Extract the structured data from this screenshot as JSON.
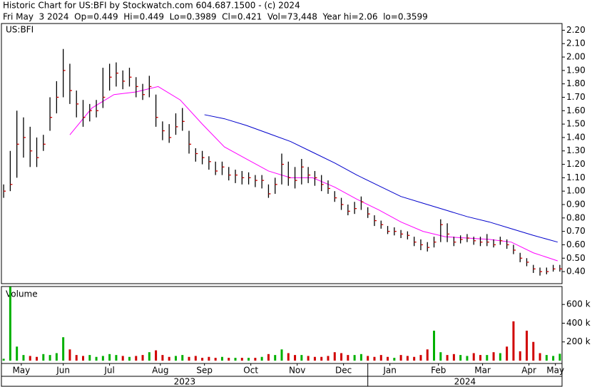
{
  "header": {
    "line1": "Historic Chart for US:BFI by Stockwatch.com 604.687.1500 - (c) 2024",
    "line2": "Fri May  3 2024  Op=0.449  Hi=0.449  Lo=0.3989  Cl=0.421  Vol=73,448  Year hi=2.06  lo=0.3599"
  },
  "chart_data": {
    "type": "ohlc",
    "title": "US:BFI",
    "x": [
      0,
      3,
      6,
      9,
      12,
      15,
      18,
      21,
      24,
      27,
      30,
      33,
      36,
      39,
      42,
      45,
      48,
      51,
      54,
      57,
      60,
      63,
      66,
      69,
      72,
      75,
      78,
      81,
      84,
      87,
      90,
      93,
      96,
      99,
      102,
      105,
      108,
      111,
      114,
      117,
      120,
      123,
      126,
      129,
      132,
      135,
      138,
      141,
      144,
      147,
      150,
      153,
      156,
      159,
      162,
      165,
      168,
      171,
      174,
      177,
      180,
      183,
      186,
      189,
      192,
      195,
      198,
      201,
      204,
      207,
      210,
      213,
      216,
      219,
      222,
      225,
      228,
      231,
      234,
      237,
      240,
      243,
      246,
      249,
      252
    ],
    "high": [
      1.05,
      1.3,
      1.6,
      1.55,
      1.48,
      1.4,
      1.42,
      1.7,
      1.82,
      2.06,
      1.95,
      1.75,
      1.68,
      1.65,
      1.68,
      1.92,
      1.95,
      1.96,
      1.9,
      1.92,
      1.85,
      1.8,
      1.86,
      1.72,
      1.52,
      1.5,
      1.58,
      1.62,
      1.45,
      1.32,
      1.3,
      1.26,
      1.22,
      1.22,
      1.18,
      1.16,
      1.15,
      1.14,
      1.12,
      1.12,
      1.05,
      1.1,
      1.28,
      1.22,
      1.18,
      1.24,
      1.18,
      1.15,
      1.12,
      1.08,
      1.0,
      0.95,
      0.9,
      0.92,
      0.96,
      0.88,
      0.82,
      0.78,
      0.74,
      0.73,
      0.71,
      0.7,
      0.66,
      0.64,
      0.62,
      0.66,
      0.79,
      0.76,
      0.66,
      0.67,
      0.68,
      0.66,
      0.66,
      0.68,
      0.64,
      0.66,
      0.64,
      0.6,
      0.54,
      0.5,
      0.45,
      0.43,
      0.43,
      0.45,
      0.45
    ],
    "low": [
      0.95,
      1.0,
      1.1,
      1.25,
      1.18,
      1.18,
      1.3,
      1.45,
      1.58,
      1.7,
      1.65,
      1.55,
      1.48,
      1.52,
      1.55,
      1.62,
      1.75,
      1.78,
      1.76,
      1.78,
      1.7,
      1.68,
      1.7,
      1.48,
      1.38,
      1.36,
      1.42,
      1.45,
      1.28,
      1.22,
      1.2,
      1.16,
      1.12,
      1.12,
      1.08,
      1.06,
      1.05,
      1.05,
      1.03,
      1.02,
      0.95,
      0.98,
      1.05,
      1.04,
      1.02,
      1.05,
      1.06,
      1.04,
      1.0,
      0.98,
      0.92,
      0.86,
      0.82,
      0.83,
      0.86,
      0.8,
      0.74,
      0.72,
      0.68,
      0.67,
      0.65,
      0.64,
      0.59,
      0.56,
      0.55,
      0.58,
      0.62,
      0.62,
      0.59,
      0.61,
      0.62,
      0.6,
      0.59,
      0.59,
      0.58,
      0.6,
      0.57,
      0.53,
      0.47,
      0.44,
      0.39,
      0.37,
      0.38,
      0.4,
      0.4
    ],
    "close": [
      1.0,
      1.05,
      1.35,
      1.4,
      1.3,
      1.25,
      1.35,
      1.55,
      1.7,
      1.9,
      1.75,
      1.65,
      1.55,
      1.6,
      1.6,
      1.7,
      1.85,
      1.88,
      1.82,
      1.85,
      1.78,
      1.72,
      1.78,
      1.55,
      1.45,
      1.4,
      1.48,
      1.52,
      1.35,
      1.28,
      1.25,
      1.22,
      1.15,
      1.18,
      1.12,
      1.12,
      1.1,
      1.1,
      1.08,
      1.08,
      0.98,
      1.05,
      1.2,
      1.1,
      1.08,
      1.18,
      1.12,
      1.1,
      1.05,
      1.02,
      0.95,
      0.9,
      0.85,
      0.87,
      0.92,
      0.83,
      0.78,
      0.75,
      0.7,
      0.7,
      0.68,
      0.67,
      0.62,
      0.6,
      0.58,
      0.62,
      0.75,
      0.68,
      0.62,
      0.64,
      0.65,
      0.63,
      0.62,
      0.62,
      0.6,
      0.63,
      0.6,
      0.56,
      0.5,
      0.47,
      0.42,
      0.4,
      0.4,
      0.42,
      0.42
    ],
    "color": "#000000",
    "close_color": "#cc0000",
    "lines": [
      {
        "color": "#ff00ff",
        "x": [
          30,
          40,
          50,
          60,
          70,
          80,
          90,
          100,
          110,
          120,
          130,
          140,
          150,
          160,
          170,
          180,
          190,
          200,
          210,
          220,
          230,
          240,
          251
        ],
        "values": [
          1.42,
          1.62,
          1.72,
          1.74,
          1.78,
          1.68,
          1.5,
          1.33,
          1.24,
          1.15,
          1.1,
          1.1,
          1.03,
          0.94,
          0.86,
          0.77,
          0.7,
          0.66,
          0.65,
          0.64,
          0.62,
          0.54,
          0.48
        ]
      },
      {
        "color": "#0000cc",
        "x": [
          91,
          100,
          110,
          120,
          130,
          140,
          150,
          160,
          170,
          180,
          190,
          200,
          210,
          220,
          230,
          240,
          251
        ],
        "values": [
          1.57,
          1.54,
          1.49,
          1.43,
          1.37,
          1.29,
          1.21,
          1.12,
          1.04,
          0.96,
          0.91,
          0.86,
          0.81,
          0.77,
          0.72,
          0.67,
          0.62
        ]
      }
    ],
    "xlim": [
      -1,
      253
    ],
    "ylim": [
      0.31,
      2.25
    ],
    "yticks": [
      {
        "value": 0.4,
        "label": "0.40"
      },
      {
        "value": 0.5,
        "label": "0.50"
      },
      {
        "value": 0.6,
        "label": "0.60"
      },
      {
        "value": 0.7,
        "label": "0.70"
      },
      {
        "value": 0.8,
        "label": "0.80"
      },
      {
        "value": 0.9,
        "label": "0.90"
      },
      {
        "value": 1.0,
        "label": "1.00"
      },
      {
        "value": 1.1,
        "label": "1.10"
      },
      {
        "value": 1.2,
        "label": "1.20"
      },
      {
        "value": 1.3,
        "label": "1.30"
      },
      {
        "value": 1.4,
        "label": "1.40"
      },
      {
        "value": 1.5,
        "label": "1.50"
      },
      {
        "value": 1.6,
        "label": "1.60"
      },
      {
        "value": 1.7,
        "label": "1.70"
      },
      {
        "value": 1.8,
        "label": "1.80"
      },
      {
        "value": 1.9,
        "label": "1.90"
      },
      {
        "value": 2.0,
        "label": "2.00"
      },
      {
        "value": 2.1,
        "label": "2.10"
      },
      {
        "value": 2.2,
        "label": "2.20"
      }
    ],
    "volume_title": "Volume",
    "volume": [
      20000,
      790000,
      150000,
      60000,
      50000,
      40000,
      70000,
      60000,
      80000,
      250000,
      120000,
      60000,
      50000,
      60000,
      40000,
      50000,
      70000,
      60000,
      50000,
      40000,
      50000,
      60000,
      90000,
      110000,
      60000,
      40000,
      50000,
      60000,
      40000,
      50000,
      30000,
      40000,
      30000,
      40000,
      30000,
      30000,
      30000,
      30000,
      30000,
      40000,
      70000,
      60000,
      120000,
      80000,
      60000,
      60000,
      50000,
      40000,
      40000,
      50000,
      90000,
      80000,
      60000,
      60000,
      70000,
      50000,
      40000,
      60000,
      40000,
      30000,
      60000,
      50000,
      40000,
      60000,
      120000,
      320000,
      90000,
      60000,
      70000,
      60000,
      50000,
      80000,
      60000,
      60000,
      90000,
      80000,
      150000,
      420000,
      100000,
      320000,
      200000,
      80000,
      60000,
      50000,
      73448
    ],
    "up_color": "#00b000",
    "down_color": "#d00000",
    "volume_ylim": [
      0,
      792000
    ],
    "volume_yticks": [
      {
        "value": 200000,
        "label": "200 k"
      },
      {
        "value": 400000,
        "label": "400 k"
      },
      {
        "value": 600000,
        "label": "600 k"
      }
    ],
    "xticks": [
      {
        "value": 8,
        "label": "May"
      },
      {
        "value": 27,
        "label": "Jun"
      },
      {
        "value": 48,
        "label": "Jul"
      },
      {
        "value": 71,
        "label": "Aug"
      },
      {
        "value": 91,
        "label": "Sep"
      },
      {
        "value": 112,
        "label": "Oct"
      },
      {
        "value": 133,
        "label": "Nov"
      },
      {
        "value": 154,
        "label": "Dec"
      },
      {
        "value": 175,
        "label": "Jan"
      },
      {
        "value": 197,
        "label": "Feb"
      },
      {
        "value": 217,
        "label": "Mar"
      },
      {
        "value": 238,
        "label": "Apr"
      },
      {
        "value": 250,
        "label": "May"
      }
    ],
    "x_groups": [
      {
        "label": "2023",
        "start": -1,
        "end": 165
      },
      {
        "label": "2024",
        "start": 165,
        "end": 253
      }
    ]
  }
}
